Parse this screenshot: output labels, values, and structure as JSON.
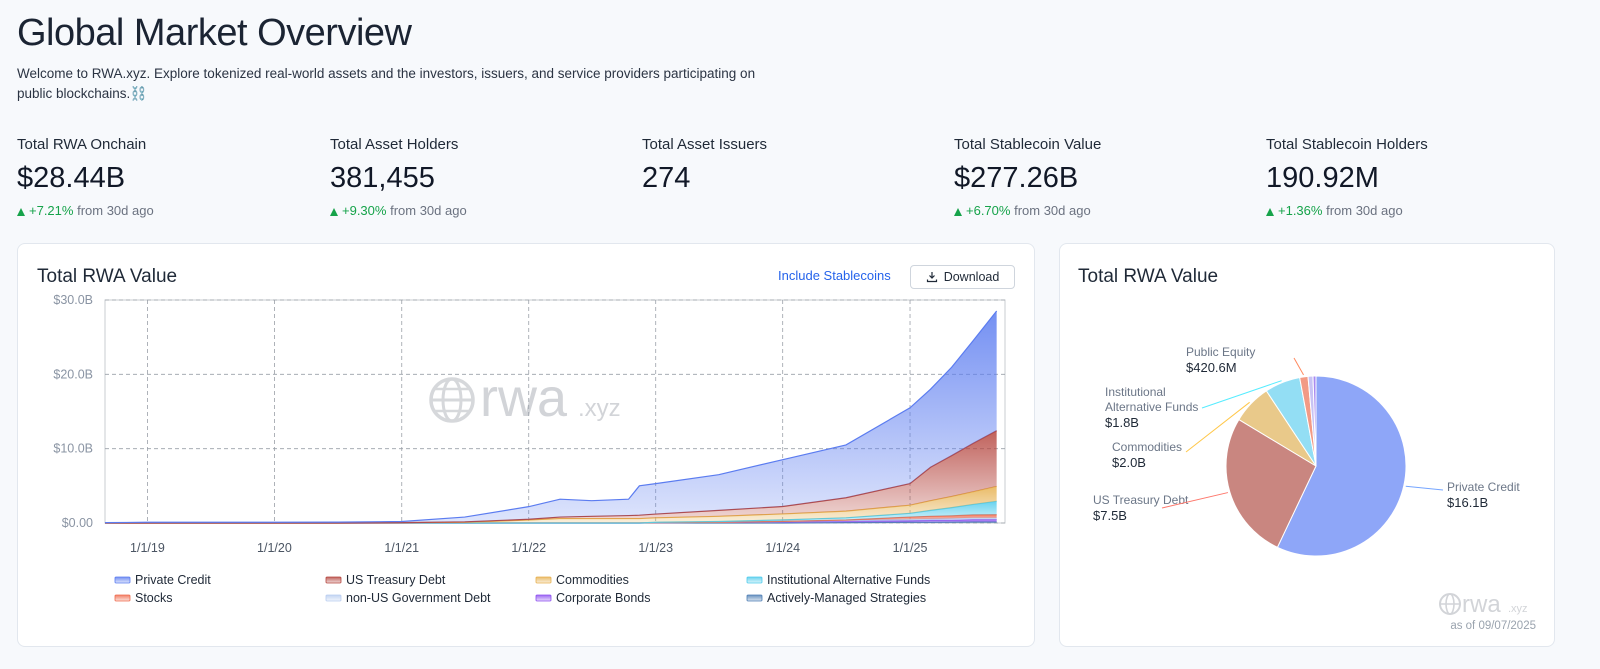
{
  "header": {
    "title": "Global Market Overview",
    "description": "Welcome to RWA.xyz. Explore tokenized real-world assets and the investors, issuers, and service providers participating on public blockchains.⛓️"
  },
  "stats": [
    {
      "label": "Total RWA Onchain",
      "value": "$28.44B",
      "change": "+7.21%",
      "change_note": "from 30d ago"
    },
    {
      "label": "Total Asset Holders",
      "value": "381,455",
      "change": "+9.30%",
      "change_note": "from 30d ago"
    },
    {
      "label": "Total Asset Issuers",
      "value": "274"
    },
    {
      "label": "Total Stablecoin Value",
      "value": "$277.26B",
      "change": "+6.70%",
      "change_note": "from 30d ago"
    },
    {
      "label": "Total Stablecoin Holders",
      "value": "190.92M",
      "change": "+1.36%",
      "change_note": "from 30d ago"
    }
  ],
  "controls": {
    "include_stablecoins": "Include Stablecoins",
    "download": "Download"
  },
  "watermark": {
    "brand": "rwa",
    "suffix": ".xyz"
  },
  "pie_footer": "as of 09/07/2025",
  "chart_data": [
    {
      "type": "area",
      "stacked": true,
      "title": "Total RWA Value",
      "x": [
        "2018-09-01",
        "2019-01-01",
        "2019-07-01",
        "2020-01-01",
        "2020-07-01",
        "2021-01-01",
        "2021-07-01",
        "2022-01-01",
        "2022-04-01",
        "2022-07-01",
        "2022-10-15",
        "2022-11-15",
        "2023-01-01",
        "2023-07-01",
        "2024-01-01",
        "2024-07-01",
        "2025-01-01",
        "2025-03-01",
        "2025-05-01",
        "2025-07-01",
        "2025-09-07"
      ],
      "xlim": [
        "2018-09-01",
        "2025-10-01"
      ],
      "xticks": [
        {
          "value": "2019-01-01",
          "label": "1/1/19"
        },
        {
          "value": "2020-01-01",
          "label": "1/1/20"
        },
        {
          "value": "2021-01-01",
          "label": "1/1/21"
        },
        {
          "value": "2022-01-01",
          "label": "1/1/22"
        },
        {
          "value": "2023-01-01",
          "label": "1/1/23"
        },
        {
          "value": "2024-01-01",
          "label": "1/1/24"
        },
        {
          "value": "2025-01-01",
          "label": "1/1/25"
        }
      ],
      "ylim": [
        0,
        30
      ],
      "yticks": [
        {
          "value": 0,
          "label": "$0.00"
        },
        {
          "value": 10,
          "label": "$10.0B"
        },
        {
          "value": 20,
          "label": "$20.0B"
        },
        {
          "value": 30,
          "label": "$30.0B"
        }
      ],
      "grid": true,
      "legend": "bottom",
      "series": [
        {
          "name": "Private Credit",
          "color": "#5b7cf0",
          "values": [
            0.05,
            0.1,
            0.1,
            0.1,
            0.12,
            0.15,
            0.65,
            1.7,
            2.4,
            2.1,
            2.2,
            3.95,
            4.1,
            4.8,
            6.3,
            7.1,
            10.2,
            10.5,
            11.9,
            13.8,
            16.1
          ]
        },
        {
          "name": "US Treasury Debt",
          "color": "#b5463f",
          "values": [
            0,
            0,
            0,
            0,
            0,
            0,
            0.05,
            0.1,
            0.2,
            0.3,
            0.4,
            0.45,
            0.5,
            0.8,
            1.0,
            1.8,
            2.9,
            4.5,
            5.5,
            6.5,
            7.5
          ]
        },
        {
          "name": "Commodities",
          "color": "#e6b04f",
          "values": [
            0,
            0,
            0,
            0,
            0,
            0.05,
            0.1,
            0.4,
            0.6,
            0.6,
            0.6,
            0.6,
            0.6,
            0.7,
            0.8,
            0.9,
            1.1,
            1.3,
            1.5,
            1.7,
            2.0
          ]
        },
        {
          "name": "Institutional Alternative Funds",
          "color": "#4fcbec",
          "values": [
            0,
            0,
            0,
            0,
            0,
            0,
            0,
            0,
            0,
            0,
            0,
            0,
            0.05,
            0.1,
            0.2,
            0.3,
            0.5,
            0.8,
            1.1,
            1.4,
            1.8
          ]
        },
        {
          "name": "Stocks",
          "color": "#ef6b4e",
          "values": [
            0,
            0,
            0,
            0,
            0,
            0,
            0,
            0,
            0,
            0,
            0,
            0,
            0,
            0,
            0.02,
            0.05,
            0.3,
            0.35,
            0.35,
            0.4,
            0.42
          ]
        },
        {
          "name": "non-US Government Debt",
          "color": "#b9cdf0",
          "values": [
            0,
            0,
            0,
            0,
            0,
            0,
            0,
            0,
            0,
            0,
            0,
            0,
            0,
            0,
            0.05,
            0.1,
            0.2,
            0.2,
            0.25,
            0.25,
            0.25
          ]
        },
        {
          "name": "Corporate Bonds",
          "color": "#8d4ff0",
          "values": [
            0,
            0,
            0,
            0,
            0,
            0,
            0,
            0,
            0,
            0,
            0,
            0,
            0.05,
            0.1,
            0.15,
            0.2,
            0.2,
            0.25,
            0.25,
            0.3,
            0.3
          ]
        },
        {
          "name": "Actively-Managed Strategies",
          "color": "#4f7fb5",
          "values": [
            0,
            0,
            0,
            0,
            0,
            0,
            0,
            0,
            0,
            0,
            0,
            0,
            0,
            0,
            0,
            0.05,
            0.1,
            0.1,
            0.12,
            0.15,
            0.15
          ]
        }
      ]
    },
    {
      "type": "pie",
      "title": "Total RWA Value",
      "categories": [
        "Private Credit",
        "US Treasury Debt",
        "Commodities",
        "Institutional Alternative Funds",
        "Public Equity",
        null,
        null
      ],
      "values": [
        16.1,
        7.5,
        2.0,
        1.8,
        0.4206,
        0.25,
        0.15
      ],
      "value_labels": [
        "$16.1B",
        "$7.5B",
        "$2.0B",
        "$1.8B",
        "$420.6M",
        null,
        null
      ],
      "colors": [
        "#8ea6f8",
        "#c98680",
        "#e9c98a",
        "#93def4",
        "#f29a85",
        "#c8c3f4",
        "#a98af0"
      ]
    }
  ]
}
